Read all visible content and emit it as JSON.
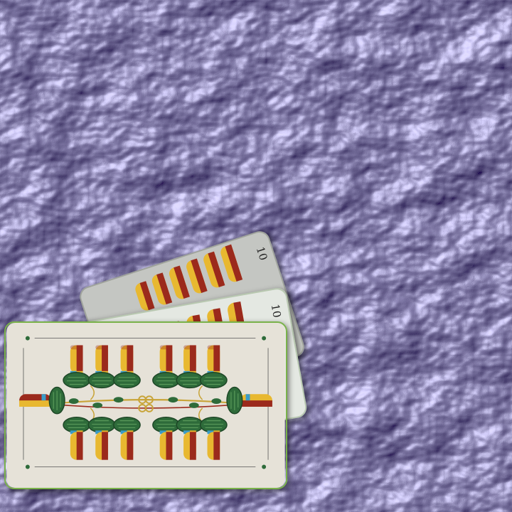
{
  "scene": {
    "background": "crumpled-foil",
    "foil_colors": {
      "dark": "#1a1830",
      "mid": "#5a5690",
      "light": "#b8b6e8"
    }
  },
  "cards": [
    {
      "name": "back-card-2",
      "rank_label": "10",
      "face_color": "#c4c6c2",
      "border_color": "#9fa39b"
    },
    {
      "name": "back-card-1",
      "rank_label": "10",
      "face_color": "#e4e8e2",
      "border_color": "#b8c8b0"
    },
    {
      "name": "front-card",
      "suit": "acorns",
      "pip_count": 10,
      "face_color": "#e6e2d8",
      "border_color": "#7ab24a"
    }
  ],
  "pip_colors": {
    "yellow": "#e8b830",
    "red": "#9b2a1c",
    "green": "#2e6b3a",
    "blue": "#3a9cc8",
    "gold": "#c8a438"
  }
}
